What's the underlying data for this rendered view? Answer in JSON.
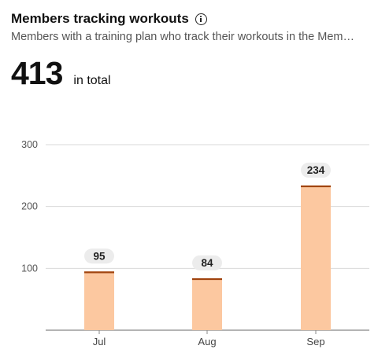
{
  "header": {
    "title": "Members tracking workouts",
    "subtitle": "Members with a training plan who track their workouts in the Mem…",
    "info_icon": "info-icon"
  },
  "summary": {
    "total": "413",
    "total_label": "in total"
  },
  "colors": {
    "bar_fill": "#fcc8a0",
    "bar_top": "#a0440f",
    "grid": "#d9d9d9",
    "axis": "#888888",
    "label_bg": "#ececec"
  },
  "chart_data": {
    "type": "bar",
    "categories": [
      "Jul",
      "Aug",
      "Sep"
    ],
    "values": [
      95,
      84,
      234
    ],
    "ylim": [
      0,
      300
    ],
    "yticks": [
      100,
      200,
      300
    ],
    "grid": true,
    "data_labels": true
  }
}
